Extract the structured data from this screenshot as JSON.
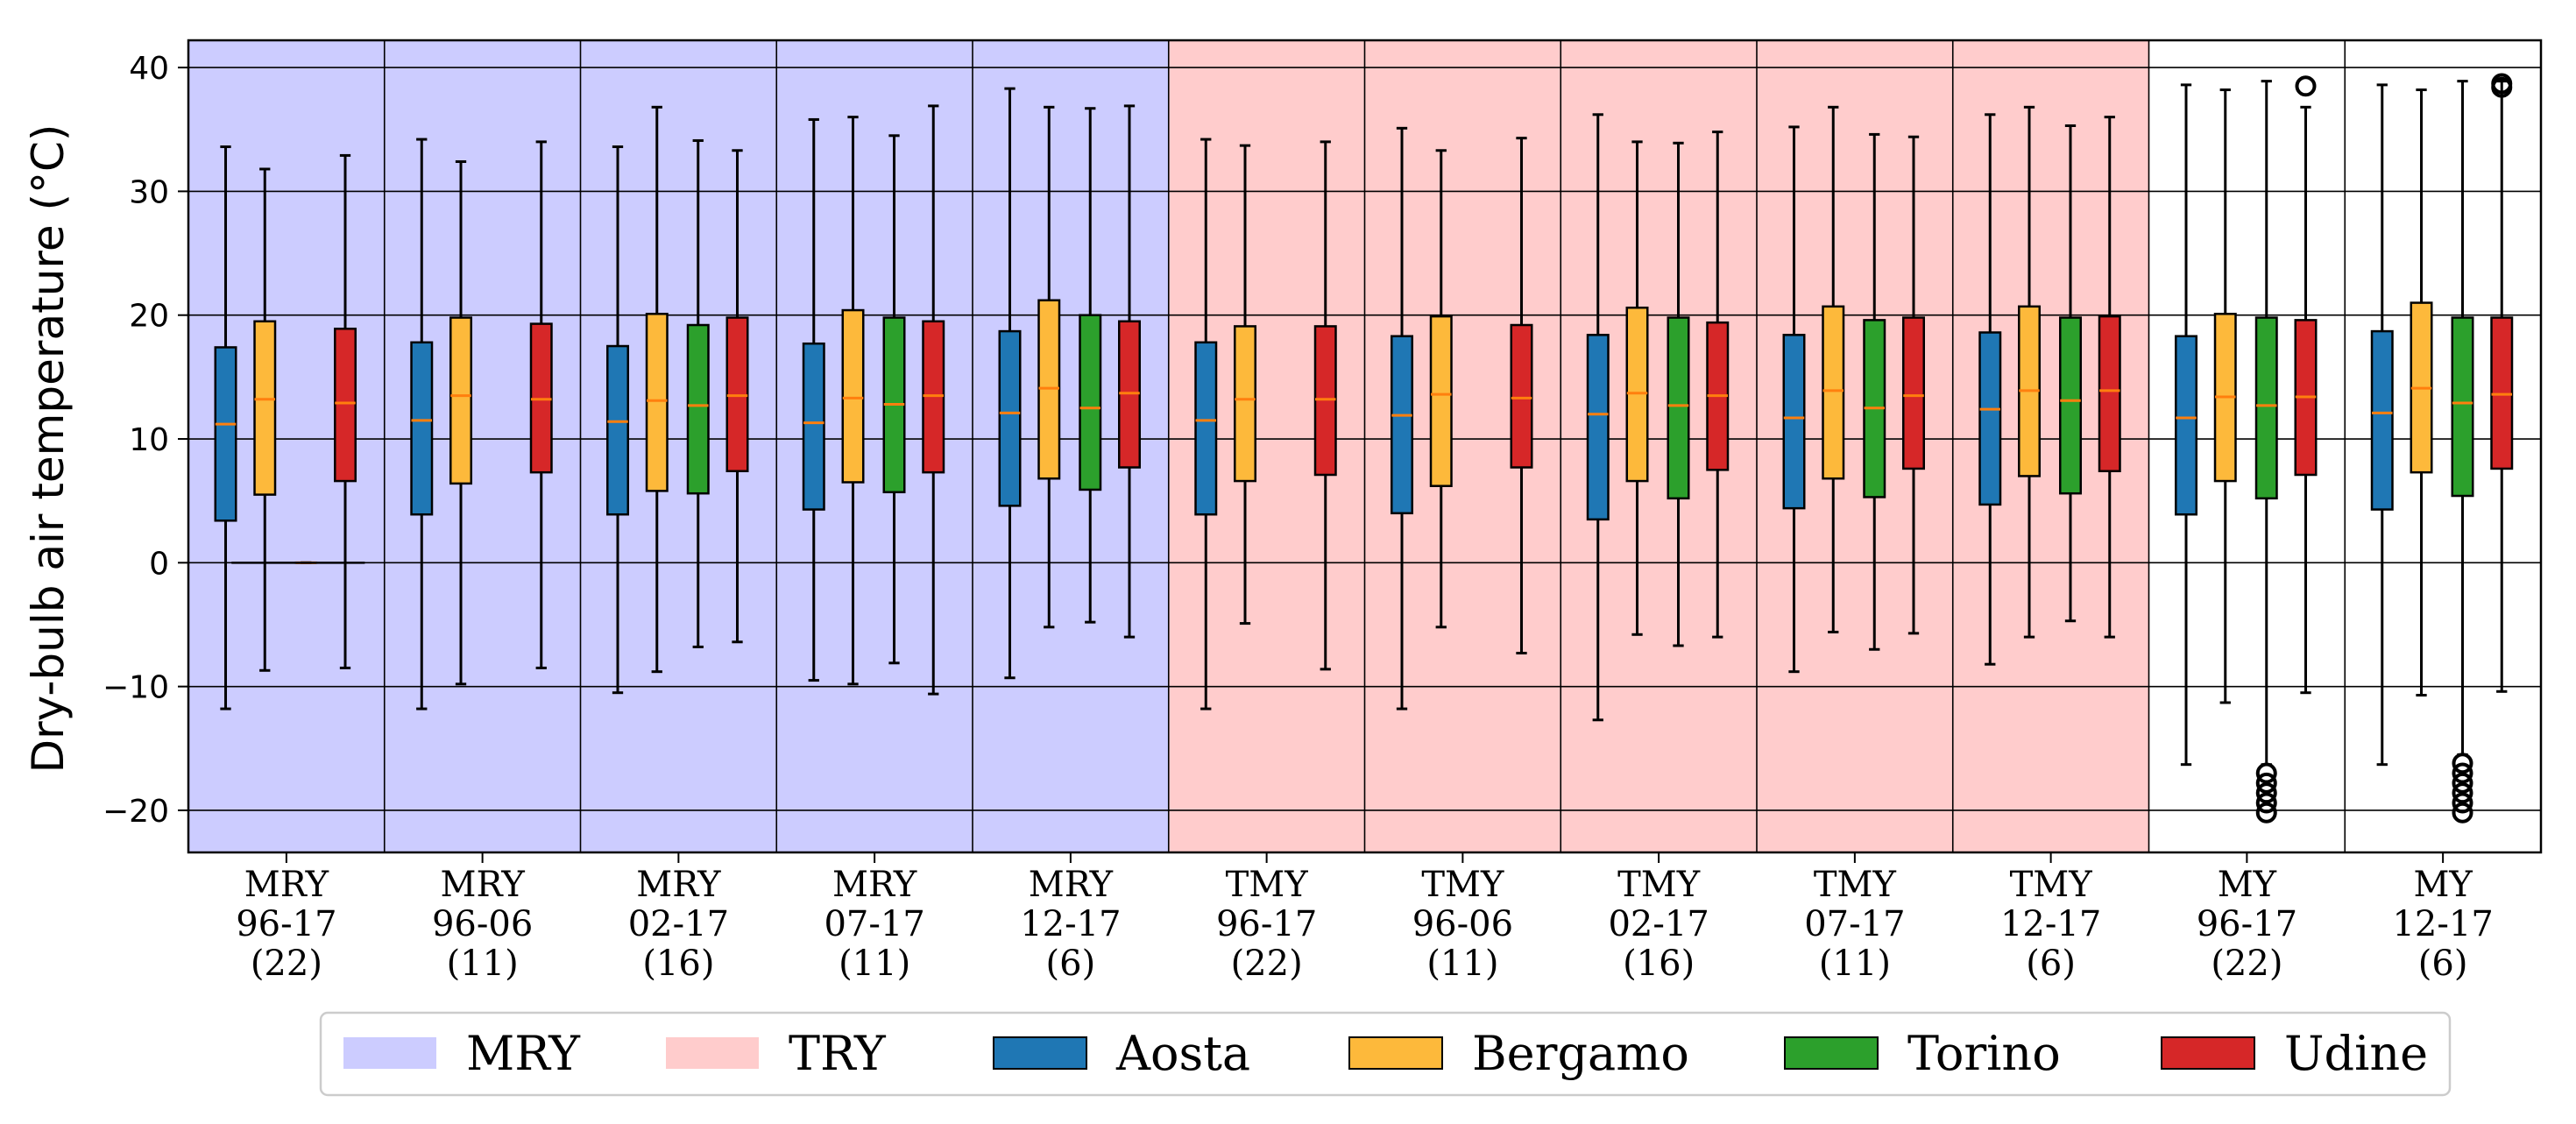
{
  "chart_data": {
    "type": "box",
    "ylabel": "Dry-bulb air temperature (°C)",
    "ylim": [
      -23.4,
      42.2
    ],
    "yticks": [
      -20,
      -10,
      0,
      10,
      20,
      30,
      40
    ],
    "ytick_labels": [
      "−20",
      "−10",
      "0",
      "10",
      "20",
      "30",
      "40"
    ],
    "grid": true,
    "legend_position": "bottom",
    "legend": [
      {
        "label": "MRY",
        "kind": "background",
        "color": "#ccccff"
      },
      {
        "label": "TRY",
        "kind": "background",
        "color": "#ffcccc"
      },
      {
        "label": "Aosta",
        "kind": "series",
        "color": "#1f77b4"
      },
      {
        "label": "Bergamo",
        "kind": "series",
        "color": "#fdb93b"
      },
      {
        "label": "Torino",
        "kind": "series",
        "color": "#2ca02c"
      },
      {
        "label": "Udine",
        "kind": "series",
        "color": "#d62728"
      }
    ],
    "median_color": "#ff7f0e",
    "series_order": [
      "Aosta",
      "Bergamo",
      "Torino",
      "Udine"
    ],
    "groups": [
      {
        "label": [
          "MRY",
          "96-17",
          "(22)"
        ],
        "background": "#ccccff",
        "boxes": {
          "Aosta": {
            "whislo": -11.8,
            "q1": 3.4,
            "med": 11.2,
            "q3": 17.4,
            "whishi": 33.6
          },
          "Bergamo": {
            "whislo": -8.7,
            "q1": 5.5,
            "med": 13.2,
            "q3": 19.5,
            "whishi": 31.8
          },
          "Torino": {
            "whislo": 0,
            "q1": 0,
            "med": 0,
            "q3": 0,
            "whishi": 0
          },
          "Udine": {
            "whislo": -8.5,
            "q1": 6.6,
            "med": 12.9,
            "q3": 18.9,
            "whishi": 32.9
          }
        }
      },
      {
        "label": [
          "MRY",
          "96-06",
          "(11)"
        ],
        "background": "#ccccff",
        "boxes": {
          "Aosta": {
            "whislo": -11.8,
            "q1": 3.9,
            "med": 11.5,
            "q3": 17.8,
            "whishi": 34.2
          },
          "Bergamo": {
            "whislo": -9.8,
            "q1": 6.4,
            "med": 13.5,
            "q3": 19.8,
            "whishi": 32.4
          },
          "Udine": {
            "whislo": -8.5,
            "q1": 7.3,
            "med": 13.2,
            "q3": 19.3,
            "whishi": 34.0
          }
        }
      },
      {
        "label": [
          "MRY",
          "02-17",
          "(16)"
        ],
        "background": "#ccccff",
        "boxes": {
          "Aosta": {
            "whislo": -10.5,
            "q1": 3.9,
            "med": 11.4,
            "q3": 17.5,
            "whishi": 33.6
          },
          "Bergamo": {
            "whislo": -8.8,
            "q1": 5.8,
            "med": 13.1,
            "q3": 20.1,
            "whishi": 36.8
          },
          "Torino": {
            "whislo": -6.8,
            "q1": 5.6,
            "med": 12.7,
            "q3": 19.2,
            "whishi": 34.1
          },
          "Udine": {
            "whislo": -6.4,
            "q1": 7.4,
            "med": 13.5,
            "q3": 19.8,
            "whishi": 33.3
          }
        }
      },
      {
        "label": [
          "MRY",
          "07-17",
          "(11)"
        ],
        "background": "#ccccff",
        "boxes": {
          "Aosta": {
            "whislo": -9.5,
            "q1": 4.3,
            "med": 11.3,
            "q3": 17.7,
            "whishi": 35.8
          },
          "Bergamo": {
            "whislo": -9.8,
            "q1": 6.5,
            "med": 13.3,
            "q3": 20.4,
            "whishi": 36.0
          },
          "Torino": {
            "whislo": -8.1,
            "q1": 5.7,
            "med": 12.8,
            "q3": 19.8,
            "whishi": 34.5
          },
          "Udine": {
            "whislo": -10.6,
            "q1": 7.3,
            "med": 13.5,
            "q3": 19.5,
            "whishi": 36.9
          }
        }
      },
      {
        "label": [
          "MRY",
          "12-17",
          "(6)"
        ],
        "background": "#ccccff",
        "boxes": {
          "Aosta": {
            "whislo": -9.3,
            "q1": 4.6,
            "med": 12.1,
            "q3": 18.7,
            "whishi": 38.3
          },
          "Bergamo": {
            "whislo": -5.2,
            "q1": 6.8,
            "med": 14.1,
            "q3": 21.2,
            "whishi": 36.8
          },
          "Torino": {
            "whislo": -4.8,
            "q1": 5.9,
            "med": 12.5,
            "q3": 20.0,
            "whishi": 36.7
          },
          "Udine": {
            "whislo": -6.0,
            "q1": 7.7,
            "med": 13.7,
            "q3": 19.5,
            "whishi": 36.9
          }
        }
      },
      {
        "label": [
          "TMY",
          "96-17",
          "(22)"
        ],
        "background": "#ffcccc",
        "boxes": {
          "Aosta": {
            "whislo": -11.8,
            "q1": 3.9,
            "med": 11.5,
            "q3": 17.8,
            "whishi": 34.2
          },
          "Bergamo": {
            "whislo": -4.9,
            "q1": 6.6,
            "med": 13.2,
            "q3": 19.1,
            "whishi": 33.7
          },
          "Udine": {
            "whislo": -8.6,
            "q1": 7.1,
            "med": 13.2,
            "q3": 19.1,
            "whishi": 34.0
          }
        }
      },
      {
        "label": [
          "TMY",
          "96-06",
          "(11)"
        ],
        "background": "#ffcccc",
        "boxes": {
          "Aosta": {
            "whislo": -11.8,
            "q1": 4.0,
            "med": 11.9,
            "q3": 18.3,
            "whishi": 35.1
          },
          "Bergamo": {
            "whislo": -5.2,
            "q1": 6.2,
            "med": 13.6,
            "q3": 19.9,
            "whishi": 33.3
          },
          "Udine": {
            "whislo": -7.3,
            "q1": 7.7,
            "med": 13.3,
            "q3": 19.2,
            "whishi": 34.3
          }
        }
      },
      {
        "label": [
          "TMY",
          "02-17",
          "(16)"
        ],
        "background": "#ffcccc",
        "boxes": {
          "Aosta": {
            "whislo": -12.7,
            "q1": 3.5,
            "med": 12.0,
            "q3": 18.4,
            "whishi": 36.2
          },
          "Bergamo": {
            "whislo": -5.8,
            "q1": 6.6,
            "med": 13.7,
            "q3": 20.6,
            "whishi": 34.0
          },
          "Torino": {
            "whislo": -6.7,
            "q1": 5.2,
            "med": 12.7,
            "q3": 19.8,
            "whishi": 33.9
          },
          "Udine": {
            "whislo": -6.0,
            "q1": 7.5,
            "med": 13.5,
            "q3": 19.4,
            "whishi": 34.8
          }
        }
      },
      {
        "label": [
          "TMY",
          "07-17",
          "(11)"
        ],
        "background": "#ffcccc",
        "boxes": {
          "Aosta": {
            "whislo": -8.8,
            "q1": 4.4,
            "med": 11.7,
            "q3": 18.4,
            "whishi": 35.2
          },
          "Bergamo": {
            "whislo": -5.6,
            "q1": 6.8,
            "med": 13.9,
            "q3": 20.7,
            "whishi": 36.8
          },
          "Torino": {
            "whislo": -7.0,
            "q1": 5.3,
            "med": 12.5,
            "q3": 19.6,
            "whishi": 34.6
          },
          "Udine": {
            "whislo": -5.7,
            "q1": 7.6,
            "med": 13.5,
            "q3": 19.8,
            "whishi": 34.4
          }
        }
      },
      {
        "label": [
          "TMY",
          "12-17",
          "(6)"
        ],
        "background": "#ffcccc",
        "boxes": {
          "Aosta": {
            "whislo": -8.2,
            "q1": 4.7,
            "med": 12.4,
            "q3": 18.6,
            "whishi": 36.2
          },
          "Bergamo": {
            "whislo": -6.0,
            "q1": 7.0,
            "med": 13.9,
            "q3": 20.7,
            "whishi": 36.8
          },
          "Torino": {
            "whislo": -4.7,
            "q1": 5.6,
            "med": 13.1,
            "q3": 19.8,
            "whishi": 35.3
          },
          "Udine": {
            "whislo": -6.0,
            "q1": 7.4,
            "med": 13.9,
            "q3": 19.9,
            "whishi": 36.0
          }
        }
      },
      {
        "label": [
          "MY",
          "96-17",
          "(22)"
        ],
        "background": "#ffffff",
        "boxes": {
          "Aosta": {
            "whislo": -16.3,
            "q1": 3.9,
            "med": 11.7,
            "q3": 18.3,
            "whishi": 38.6
          },
          "Bergamo": {
            "whislo": -11.3,
            "q1": 6.6,
            "med": 13.4,
            "q3": 20.1,
            "whishi": 38.2
          },
          "Torino": {
            "whislo": -16.3,
            "q1": 5.2,
            "med": 12.7,
            "q3": 19.8,
            "whishi": 38.9,
            "fliers": [
              -17.0,
              -17.8,
              -18.6,
              -19.4,
              -20.2
            ]
          },
          "Udine": {
            "whislo": -10.5,
            "q1": 7.1,
            "med": 13.4,
            "q3": 19.6,
            "whishi": 36.8,
            "fliers": [
              38.5
            ]
          }
        }
      },
      {
        "label": [
          "MY",
          "12-17",
          "(6)"
        ],
        "background": "#ffffff",
        "boxes": {
          "Aosta": {
            "whislo": -16.3,
            "q1": 4.3,
            "med": 12.1,
            "q3": 18.7,
            "whishi": 38.6
          },
          "Bergamo": {
            "whislo": -10.7,
            "q1": 7.3,
            "med": 14.1,
            "q3": 21.0,
            "whishi": 38.2
          },
          "Torino": {
            "whislo": -15.5,
            "q1": 5.4,
            "med": 12.9,
            "q3": 19.8,
            "whishi": 38.9,
            "fliers": [
              -16.2,
              -17.0,
              -17.8,
              -18.6,
              -19.4,
              -20.2
            ]
          },
          "Udine": {
            "whislo": -10.4,
            "q1": 7.6,
            "med": 13.6,
            "q3": 19.8,
            "whishi": 38.9,
            "fliers": [
              38.4,
              38.7
            ]
          }
        }
      }
    ]
  }
}
